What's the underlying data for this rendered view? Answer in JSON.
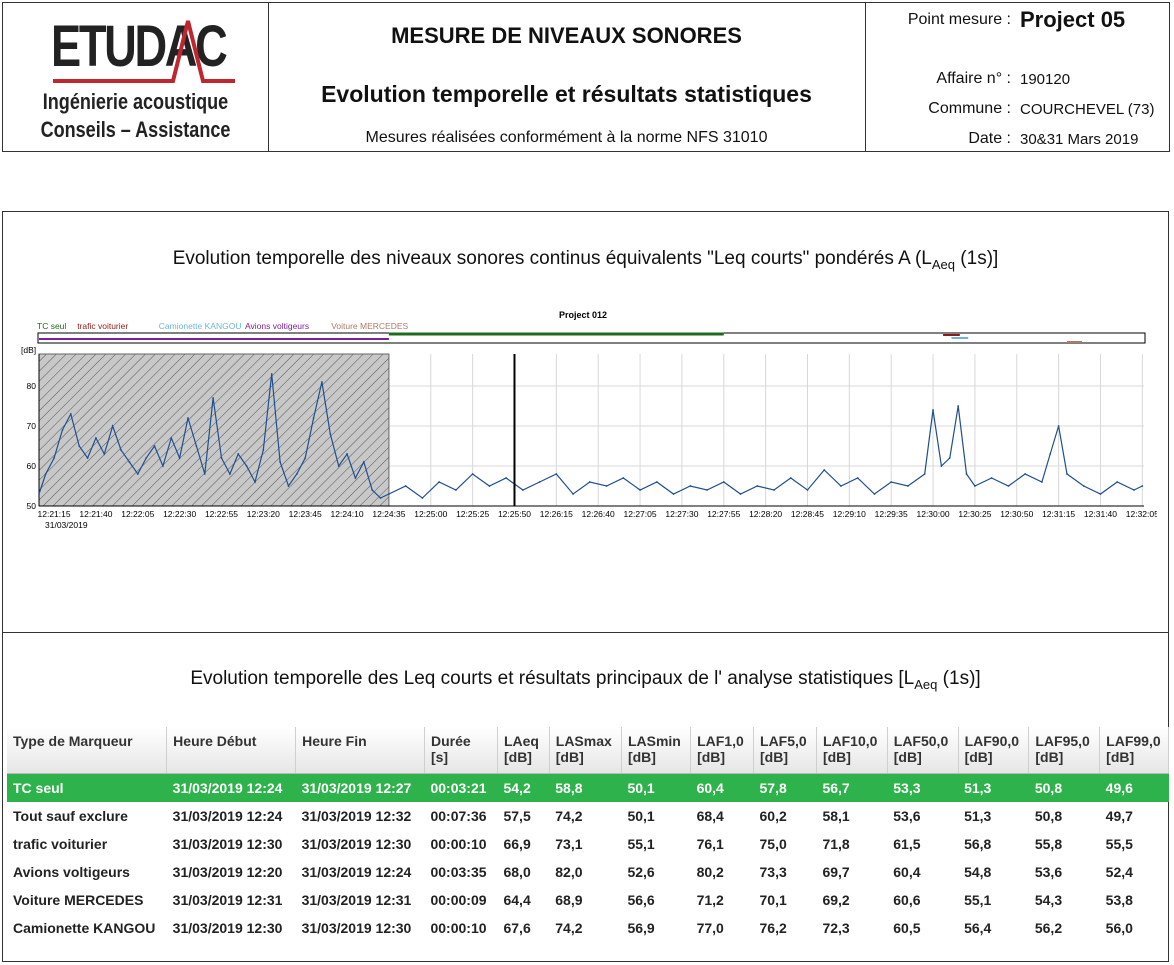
{
  "header": {
    "logo_word": "ETUDAC",
    "logo_sub1": "Ingénierie acoustique",
    "logo_sub2": "Conseils – Assistance",
    "title_main": "MESURE DE NIVEAUX SONORES",
    "title_sub": "Evolution temporelle et résultats statistiques",
    "norm": "Mesures réalisées conformément à la norme NFS 31010",
    "point_label": "Point mesure :",
    "point_value": "Project 05",
    "affaire_label": "Affaire n° :",
    "affaire_value": "190120",
    "commune_label": "Commune :",
    "commune_value": "COURCHEVEL (73)",
    "date_label": "Date :",
    "date_value": "30&31 Mars 2019"
  },
  "chart_section": {
    "title_pre": "Evolution temporelle des niveaux sonores continus équivalents \"Leq courts\" pondérés A (L",
    "title_sub": "Aeq",
    "title_post": " (1s)]"
  },
  "table_section": {
    "title_pre": "Evolution temporelle des Leq courts et résultats principaux de l' analyse statistiques [L",
    "title_sub": "Aeq",
    "title_post": " (1s)]"
  },
  "chart_data": {
    "type": "line",
    "title": "Project 012",
    "ylabel": "[dB]",
    "ylim": [
      50,
      88
    ],
    "yticks": [
      "50",
      "60",
      "70",
      "80"
    ],
    "date_label": "31/03/2019",
    "xticks": [
      "12:21:15",
      "12:21:40",
      "12:22:05",
      "12:22:30",
      "12:22:55",
      "12:23:20",
      "12:23:45",
      "12:24:10",
      "12:24:35",
      "12:25:00",
      "12:25:25",
      "12:25:50",
      "12:26:15",
      "12:26:40",
      "12:27:05",
      "12:27:30",
      "12:27:55",
      "12:28:20",
      "12:28:45",
      "12:29:10",
      "12:29:35",
      "12:30:00",
      "12:30:25",
      "12:30:50",
      "12:31:15",
      "12:31:40",
      "12:32:05"
    ],
    "legend": [
      {
        "name": "TC seul",
        "color": "#1e6b1e"
      },
      {
        "name": "trafic voiturier",
        "color": "#8b1a1a"
      },
      {
        "name": "Camionette KANGOU",
        "color": "#6bb6d6"
      },
      {
        "name": "Avions voltigeurs",
        "color": "#7a1f9a"
      },
      {
        "name": "Voiture MERCEDES",
        "color": "#b07a6a"
      }
    ],
    "excluded_region": {
      "from": "12:21:06",
      "to": "12:24:35"
    },
    "cursor": "12:25:50",
    "series_color": "#1f4f8f",
    "series": [
      {
        "name": "LAeq 1s",
        "points": [
          [
            "12:21:06",
            53
          ],
          [
            "12:21:10",
            58
          ],
          [
            "12:21:15",
            62
          ],
          [
            "12:21:20",
            69
          ],
          [
            "12:21:25",
            73
          ],
          [
            "12:21:30",
            65
          ],
          [
            "12:21:35",
            62
          ],
          [
            "12:21:40",
            67
          ],
          [
            "12:21:45",
            63
          ],
          [
            "12:21:50",
            70
          ],
          [
            "12:21:55",
            64
          ],
          [
            "12:22:00",
            61
          ],
          [
            "12:22:05",
            58
          ],
          [
            "12:22:10",
            62
          ],
          [
            "12:22:15",
            65
          ],
          [
            "12:22:20",
            60
          ],
          [
            "12:22:25",
            67
          ],
          [
            "12:22:30",
            62
          ],
          [
            "12:22:35",
            72
          ],
          [
            "12:22:40",
            65
          ],
          [
            "12:22:45",
            58
          ],
          [
            "12:22:50",
            77
          ],
          [
            "12:22:55",
            62
          ],
          [
            "12:23:00",
            58
          ],
          [
            "12:23:05",
            63
          ],
          [
            "12:23:10",
            60
          ],
          [
            "12:23:15",
            56
          ],
          [
            "12:23:20",
            64
          ],
          [
            "12:23:25",
            83
          ],
          [
            "12:23:30",
            61
          ],
          [
            "12:23:35",
            55
          ],
          [
            "12:23:40",
            58
          ],
          [
            "12:23:45",
            62
          ],
          [
            "12:23:50",
            72
          ],
          [
            "12:23:55",
            81
          ],
          [
            "12:24:00",
            68
          ],
          [
            "12:24:05",
            60
          ],
          [
            "12:24:10",
            63
          ],
          [
            "12:24:15",
            57
          ],
          [
            "12:24:20",
            61
          ],
          [
            "12:24:25",
            54
          ],
          [
            "12:24:30",
            52
          ],
          [
            "12:24:35",
            53
          ],
          [
            "12:24:45",
            55
          ],
          [
            "12:24:55",
            52
          ],
          [
            "12:25:05",
            56
          ],
          [
            "12:25:15",
            54
          ],
          [
            "12:25:25",
            58
          ],
          [
            "12:25:35",
            55
          ],
          [
            "12:25:45",
            57
          ],
          [
            "12:25:55",
            54
          ],
          [
            "12:26:05",
            56
          ],
          [
            "12:26:15",
            58
          ],
          [
            "12:26:25",
            53
          ],
          [
            "12:26:35",
            56
          ],
          [
            "12:26:45",
            55
          ],
          [
            "12:26:55",
            57
          ],
          [
            "12:27:05",
            54
          ],
          [
            "12:27:15",
            56
          ],
          [
            "12:27:25",
            53
          ],
          [
            "12:27:35",
            55
          ],
          [
            "12:27:45",
            54
          ],
          [
            "12:27:55",
            56
          ],
          [
            "12:28:05",
            53
          ],
          [
            "12:28:15",
            55
          ],
          [
            "12:28:25",
            54
          ],
          [
            "12:28:35",
            57
          ],
          [
            "12:28:45",
            54
          ],
          [
            "12:28:55",
            59
          ],
          [
            "12:29:05",
            55
          ],
          [
            "12:29:15",
            57
          ],
          [
            "12:29:25",
            53
          ],
          [
            "12:29:35",
            56
          ],
          [
            "12:29:45",
            55
          ],
          [
            "12:29:55",
            58
          ],
          [
            "12:30:00",
            74
          ],
          [
            "12:30:05",
            60
          ],
          [
            "12:30:10",
            62
          ],
          [
            "12:30:15",
            75
          ],
          [
            "12:30:20",
            58
          ],
          [
            "12:30:25",
            55
          ],
          [
            "12:30:35",
            57
          ],
          [
            "12:30:45",
            55
          ],
          [
            "12:30:55",
            58
          ],
          [
            "12:31:05",
            56
          ],
          [
            "12:31:10",
            63
          ],
          [
            "12:31:15",
            70
          ],
          [
            "12:31:20",
            58
          ],
          [
            "12:31:30",
            55
          ],
          [
            "12:31:40",
            53
          ],
          [
            "12:31:50",
            56
          ],
          [
            "12:32:00",
            54
          ],
          [
            "12:32:05",
            55
          ]
        ]
      }
    ]
  },
  "table": {
    "headers": [
      [
        "Type de Marqueur",
        ""
      ],
      [
        "Heure Début",
        ""
      ],
      [
        "Heure Fin",
        ""
      ],
      [
        "Durée",
        "[s]"
      ],
      [
        "LAeq",
        "[dB]"
      ],
      [
        "LASmax",
        "[dB]"
      ],
      [
        "LASmin",
        "[dB]"
      ],
      [
        "LAF1,0",
        "[dB]"
      ],
      [
        "LAF5,0",
        "[dB]"
      ],
      [
        "LAF10,0",
        "[dB]"
      ],
      [
        "LAF50,0",
        "[dB]"
      ],
      [
        "LAF90,0",
        "[dB]"
      ],
      [
        "LAF95,0",
        "[dB]"
      ],
      [
        "LAF99,0",
        "[dB]"
      ]
    ],
    "rows": [
      [
        "TC seul",
        "31/03/2019 12:24",
        "31/03/2019 12:27",
        "00:03:21",
        "54,2",
        "58,8",
        "50,1",
        "60,4",
        "57,8",
        "56,7",
        "53,3",
        "51,3",
        "50,8",
        "49,6"
      ],
      [
        "Tout sauf exclure",
        "31/03/2019 12:24",
        "31/03/2019 12:32",
        "00:07:36",
        "57,5",
        "74,2",
        "50,1",
        "68,4",
        "60,2",
        "58,1",
        "53,6",
        "51,3",
        "50,8",
        "49,7"
      ],
      [
        "trafic voiturier",
        "31/03/2019 12:30",
        "31/03/2019 12:30",
        "00:00:10",
        "66,9",
        "73,1",
        "55,1",
        "76,1",
        "75,0",
        "71,8",
        "61,5",
        "56,8",
        "55,8",
        "55,5"
      ],
      [
        "Avions voltigeurs",
        "31/03/2019 12:20",
        "31/03/2019 12:24",
        "00:03:35",
        "68,0",
        "82,0",
        "52,6",
        "80,2",
        "73,3",
        "69,7",
        "60,4",
        "54,8",
        "53,6",
        "52,4"
      ],
      [
        "Voiture MERCEDES",
        "31/03/2019 12:31",
        "31/03/2019 12:31",
        "00:00:09",
        "64,4",
        "68,9",
        "56,6",
        "71,2",
        "70,1",
        "69,2",
        "60,6",
        "55,1",
        "54,3",
        "53,8"
      ],
      [
        "Camionette KANGOU",
        "31/03/2019 12:30",
        "31/03/2019 12:30",
        "00:00:10",
        "67,6",
        "74,2",
        "56,9",
        "77,0",
        "76,2",
        "72,3",
        "60,5",
        "56,4",
        "56,2",
        "56,0"
      ]
    ],
    "highlight_color": "#2eb24c"
  }
}
